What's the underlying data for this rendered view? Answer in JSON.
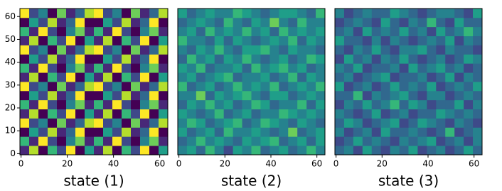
{
  "chart_data": [
    {
      "type": "heatmap",
      "xlabel": "state (1)",
      "colormap": "viridis",
      "clim": [
        0,
        9
      ],
      "xlim": [
        -0.5,
        63.5
      ],
      "ylim": [
        -0.5,
        63.5
      ],
      "xticks": [
        0,
        20,
        40,
        60
      ],
      "yticks": [
        0,
        10,
        20,
        30,
        40,
        50,
        60
      ],
      "values": [
        [
          1,
          8,
          0,
          6,
          2,
          9,
          0,
          5,
          1,
          8,
          0,
          6,
          2,
          9,
          0,
          5
        ],
        [
          6,
          1,
          9,
          2,
          0,
          4,
          7,
          1,
          6,
          1,
          9,
          2,
          0,
          4,
          7,
          1
        ],
        [
          0,
          5,
          2,
          8,
          1,
          3,
          9,
          0,
          0,
          5,
          2,
          8,
          1,
          3,
          9,
          0
        ],
        [
          9,
          2,
          4,
          0,
          7,
          1,
          3,
          8,
          9,
          2,
          4,
          0,
          7,
          1,
          3,
          8
        ],
        [
          1,
          8,
          0,
          6,
          2,
          9,
          0,
          5,
          1,
          8,
          0,
          6,
          2,
          9,
          0,
          5
        ],
        [
          6,
          1,
          9,
          2,
          0,
          4,
          7,
          1,
          6,
          1,
          9,
          2,
          0,
          4,
          7,
          1
        ],
        [
          0,
          5,
          2,
          8,
          1,
          3,
          9,
          0,
          0,
          5,
          2,
          8,
          1,
          3,
          9,
          0
        ],
        [
          9,
          2,
          4,
          0,
          7,
          1,
          3,
          8,
          9,
          2,
          4,
          0,
          7,
          1,
          3,
          8
        ],
        [
          1,
          8,
          0,
          6,
          2,
          9,
          0,
          5,
          1,
          8,
          0,
          6,
          2,
          9,
          0,
          5
        ],
        [
          6,
          1,
          9,
          2,
          0,
          4,
          7,
          1,
          6,
          1,
          9,
          2,
          0,
          4,
          7,
          1
        ],
        [
          0,
          5,
          2,
          8,
          1,
          3,
          9,
          0,
          0,
          5,
          2,
          8,
          1,
          3,
          9,
          0
        ],
        [
          9,
          2,
          4,
          0,
          7,
          1,
          3,
          8,
          9,
          2,
          4,
          0,
          7,
          1,
          3,
          8
        ],
        [
          1,
          8,
          0,
          6,
          2,
          9,
          0,
          5,
          1,
          8,
          0,
          6,
          2,
          9,
          0,
          5
        ],
        [
          6,
          1,
          9,
          2,
          0,
          4,
          7,
          1,
          6,
          1,
          9,
          2,
          0,
          4,
          7,
          1
        ],
        [
          0,
          5,
          2,
          8,
          1,
          3,
          9,
          0,
          0,
          5,
          2,
          8,
          1,
          3,
          9,
          0
        ],
        [
          9,
          2,
          4,
          0,
          7,
          1,
          3,
          8,
          9,
          2,
          4,
          0,
          7,
          1,
          3,
          8
        ]
      ]
    },
    {
      "type": "heatmap",
      "xlabel": "state (2)",
      "colormap": "viridis",
      "clim": [
        0,
        9
      ],
      "xlim": [
        -0.5,
        63.5
      ],
      "ylim": [
        -0.5,
        63.5
      ],
      "xticks": [
        0,
        20,
        40,
        60
      ],
      "values": [
        [
          4,
          5,
          3,
          6,
          4,
          2,
          5,
          4,
          6,
          3,
          4,
          5,
          3,
          4,
          6,
          4
        ],
        [
          3,
          4,
          6,
          4,
          5,
          4,
          3,
          5,
          4,
          5,
          6,
          3,
          4,
          5,
          3,
          5
        ],
        [
          5,
          3,
          4,
          5,
          3,
          6,
          4,
          4,
          5,
          4,
          3,
          4,
          7,
          3,
          4,
          5
        ],
        [
          4,
          6,
          5,
          3,
          4,
          5,
          6,
          3,
          4,
          6,
          5,
          4,
          3,
          5,
          4,
          3
        ],
        [
          5,
          4,
          3,
          4,
          6,
          3,
          4,
          5,
          3,
          4,
          4,
          6,
          5,
          4,
          5,
          4
        ],
        [
          3,
          5,
          4,
          6,
          4,
          5,
          3,
          4,
          6,
          5,
          3,
          4,
          4,
          6,
          3,
          5
        ],
        [
          4,
          4,
          7,
          3,
          5,
          4,
          5,
          6,
          4,
          3,
          5,
          5,
          3,
          4,
          5,
          4
        ],
        [
          6,
          3,
          4,
          5,
          3,
          4,
          6,
          4,
          5,
          4,
          6,
          3,
          4,
          5,
          4,
          6
        ],
        [
          4,
          5,
          3,
          4,
          5,
          6,
          3,
          4,
          4,
          5,
          3,
          4,
          6,
          3,
          5,
          4
        ],
        [
          5,
          4,
          6,
          3,
          4,
          4,
          5,
          3,
          6,
          4,
          5,
          6,
          4,
          5,
          3,
          4
        ],
        [
          3,
          6,
          4,
          5,
          3,
          5,
          4,
          6,
          4,
          3,
          4,
          5,
          3,
          4,
          6,
          5
        ],
        [
          4,
          3,
          5,
          4,
          6,
          4,
          3,
          5,
          5,
          6,
          4,
          3,
          5,
          4,
          4,
          3
        ],
        [
          6,
          4,
          4,
          3,
          5,
          3,
          5,
          4,
          3,
          4,
          5,
          4,
          6,
          3,
          5,
          4
        ],
        [
          4,
          5,
          3,
          6,
          4,
          5,
          4,
          6,
          4,
          5,
          3,
          6,
          4,
          5,
          4,
          5
        ],
        [
          3,
          4,
          5,
          4,
          3,
          6,
          4,
          3,
          5,
          4,
          7,
          4,
          3,
          6,
          4,
          4
        ],
        [
          5,
          3,
          4,
          5,
          4,
          4,
          6,
          5,
          4,
          3,
          4,
          5,
          5,
          4,
          3,
          6
        ]
      ]
    },
    {
      "type": "heatmap",
      "xlabel": "state (3)",
      "colormap": "viridis",
      "clim": [
        0,
        9
      ],
      "xlim": [
        -0.5,
        63.5
      ],
      "ylim": [
        -0.5,
        63.5
      ],
      "xticks": [
        0,
        20,
        40,
        60
      ],
      "values": [
        [
          3,
          4,
          2,
          5,
          3,
          2,
          4,
          3,
          5,
          2,
          3,
          4,
          2,
          3,
          5,
          3
        ],
        [
          2,
          3,
          5,
          3,
          4,
          3,
          2,
          4,
          3,
          4,
          5,
          2,
          3,
          4,
          2,
          4
        ],
        [
          4,
          2,
          3,
          4,
          2,
          5,
          3,
          3,
          4,
          3,
          2,
          3,
          6,
          2,
          3,
          4
        ],
        [
          3,
          5,
          4,
          2,
          3,
          4,
          5,
          2,
          3,
          5,
          4,
          3,
          2,
          4,
          3,
          2
        ],
        [
          4,
          3,
          2,
          3,
          5,
          2,
          3,
          4,
          2,
          3,
          3,
          5,
          4,
          3,
          4,
          3
        ],
        [
          2,
          4,
          3,
          5,
          3,
          4,
          6,
          3,
          5,
          4,
          2,
          3,
          3,
          5,
          2,
          4
        ],
        [
          3,
          3,
          6,
          2,
          4,
          3,
          4,
          5,
          3,
          2,
          4,
          4,
          2,
          3,
          4,
          3
        ],
        [
          5,
          2,
          3,
          4,
          2,
          3,
          5,
          3,
          4,
          3,
          5,
          2,
          3,
          4,
          3,
          5
        ],
        [
          3,
          4,
          2,
          3,
          4,
          5,
          2,
          3,
          3,
          4,
          2,
          3,
          5,
          2,
          4,
          3
        ],
        [
          4,
          3,
          5,
          2,
          3,
          3,
          4,
          2,
          5,
          3,
          4,
          5,
          3,
          4,
          2,
          3
        ],
        [
          2,
          5,
          3,
          4,
          2,
          4,
          3,
          5,
          3,
          2,
          3,
          4,
          2,
          3,
          5,
          4
        ],
        [
          3,
          2,
          4,
          3,
          5,
          3,
          2,
          4,
          4,
          5,
          3,
          2,
          4,
          3,
          3,
          2
        ],
        [
          5,
          3,
          3,
          2,
          4,
          2,
          4,
          3,
          2,
          3,
          4,
          3,
          5,
          2,
          4,
          3
        ],
        [
          3,
          4,
          2,
          5,
          3,
          4,
          3,
          5,
          3,
          4,
          2,
          5,
          3,
          4,
          6,
          4
        ],
        [
          2,
          3,
          4,
          3,
          2,
          5,
          3,
          2,
          4,
          3,
          6,
          3,
          2,
          5,
          3,
          3
        ],
        [
          4,
          2,
          3,
          4,
          3,
          3,
          5,
          4,
          3,
          2,
          3,
          4,
          4,
          3,
          2,
          5
        ]
      ]
    }
  ]
}
